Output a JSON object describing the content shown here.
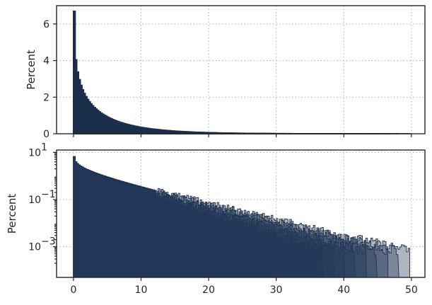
{
  "chart_data": [
    {
      "type": "histogram-overlay",
      "panel": "top",
      "yscale": "linear",
      "ylabel": "Percent",
      "xlim": [
        -2.5,
        52
      ],
      "ylim": [
        0,
        7
      ],
      "yticks": [
        {
          "value": 0,
          "label": "0"
        },
        {
          "value": 2,
          "label": "2"
        },
        {
          "value": 4,
          "label": "4"
        },
        {
          "value": 6,
          "label": "6"
        }
      ],
      "xticks": [
        0,
        10,
        20,
        30,
        40,
        50
      ],
      "x_tick_labels_shown": false,
      "grid": true,
      "colormap": [
        "#e2c9ec",
        "#b9a7df",
        "#7c7cc4",
        "#3a5384",
        "#1b2f4a"
      ],
      "num_series": 30,
      "peak_value": 6.7,
      "x_max_extent": 50
    },
    {
      "type": "histogram-overlay",
      "panel": "bottom",
      "yscale": "log",
      "ylabel": "Percent",
      "xlim": [
        -2.5,
        52
      ],
      "ylim_exponent": [
        -4.3,
        1.1
      ],
      "yticks": [
        {
          "exp": 1,
          "label": "10"
        },
        {
          "exp": -1,
          "label": "10"
        },
        {
          "exp": -3,
          "label": "10"
        }
      ],
      "xticks": [
        {
          "value": 0,
          "label": "0"
        },
        {
          "value": 10,
          "label": "10"
        },
        {
          "value": 20,
          "label": "20"
        },
        {
          "value": 30,
          "label": "30"
        },
        {
          "value": 40,
          "label": "40"
        },
        {
          "value": 50,
          "label": "50"
        }
      ],
      "grid": true,
      "colormap": [
        "#e2c9ec",
        "#b9a7df",
        "#7c7cc4",
        "#3a5384",
        "#1b2f4a"
      ],
      "num_series": 30,
      "peak_value": 6.7,
      "x_max_extent": 49.5
    }
  ]
}
